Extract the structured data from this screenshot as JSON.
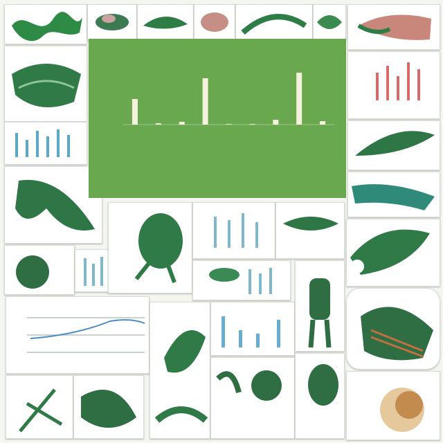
{
  "chart_data": {
    "type": "bar",
    "values": [
      37,
      2,
      4,
      67,
      1,
      1,
      7,
      75,
      5
    ],
    "color": "#f4f1dc",
    "ylim": [
      0,
      100
    ],
    "background": "#6aa84f"
  }
}
